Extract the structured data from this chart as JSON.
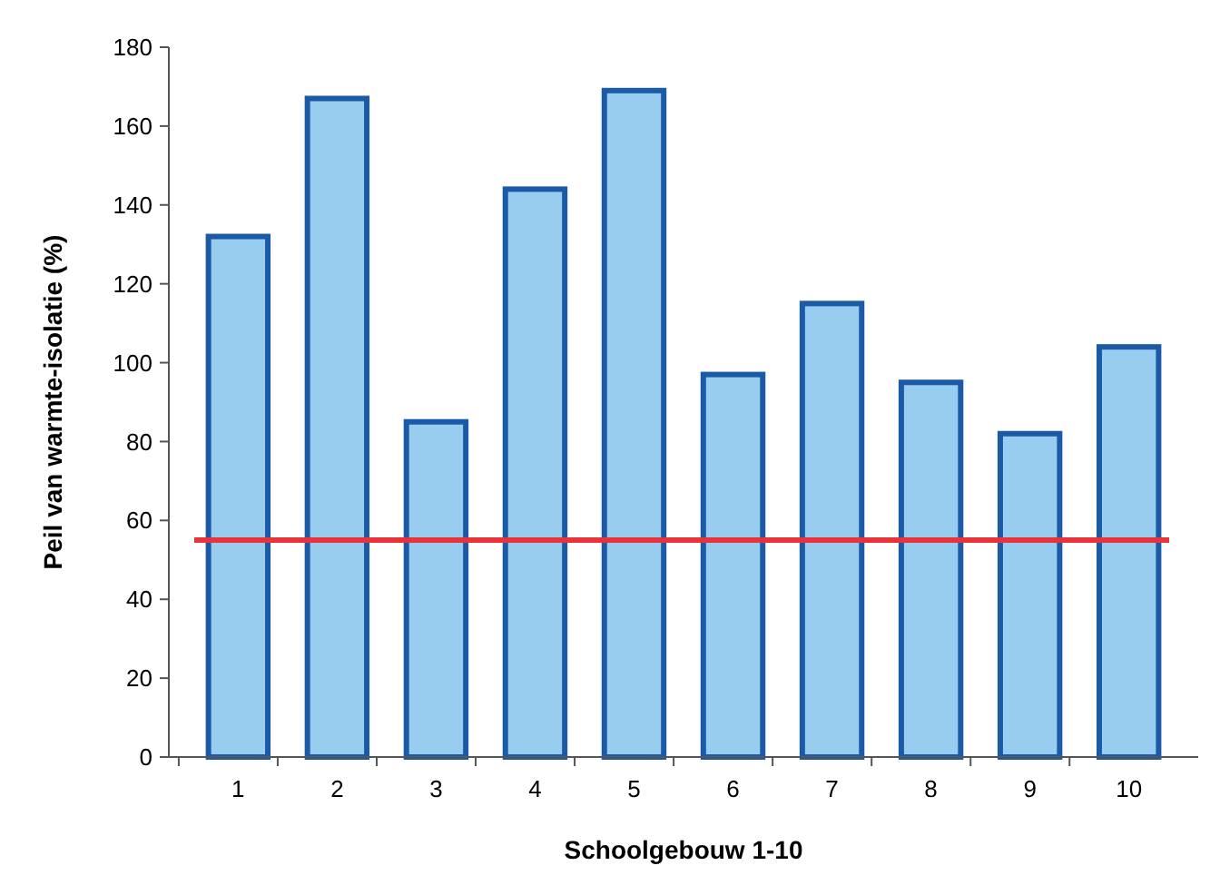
{
  "chart_data": {
    "type": "bar",
    "xlabel": "Schoolgebouw 1-10",
    "ylabel": "Peil van warmte-isolatie (%)",
    "categories": [
      "1",
      "2",
      "3",
      "4",
      "5",
      "6",
      "7",
      "8",
      "9",
      "10"
    ],
    "values": [
      132,
      167,
      85,
      144,
      169,
      97,
      115,
      95,
      82,
      104
    ],
    "color": "#99cdef",
    "ylim": [
      0,
      180
    ],
    "yticks": [
      0,
      20,
      40,
      60,
      80,
      100,
      120,
      140,
      160,
      180
    ],
    "grid": false,
    "ref_lines": [
      {
        "axis": "y",
        "value": 55,
        "color": "#e8333a"
      }
    ]
  }
}
